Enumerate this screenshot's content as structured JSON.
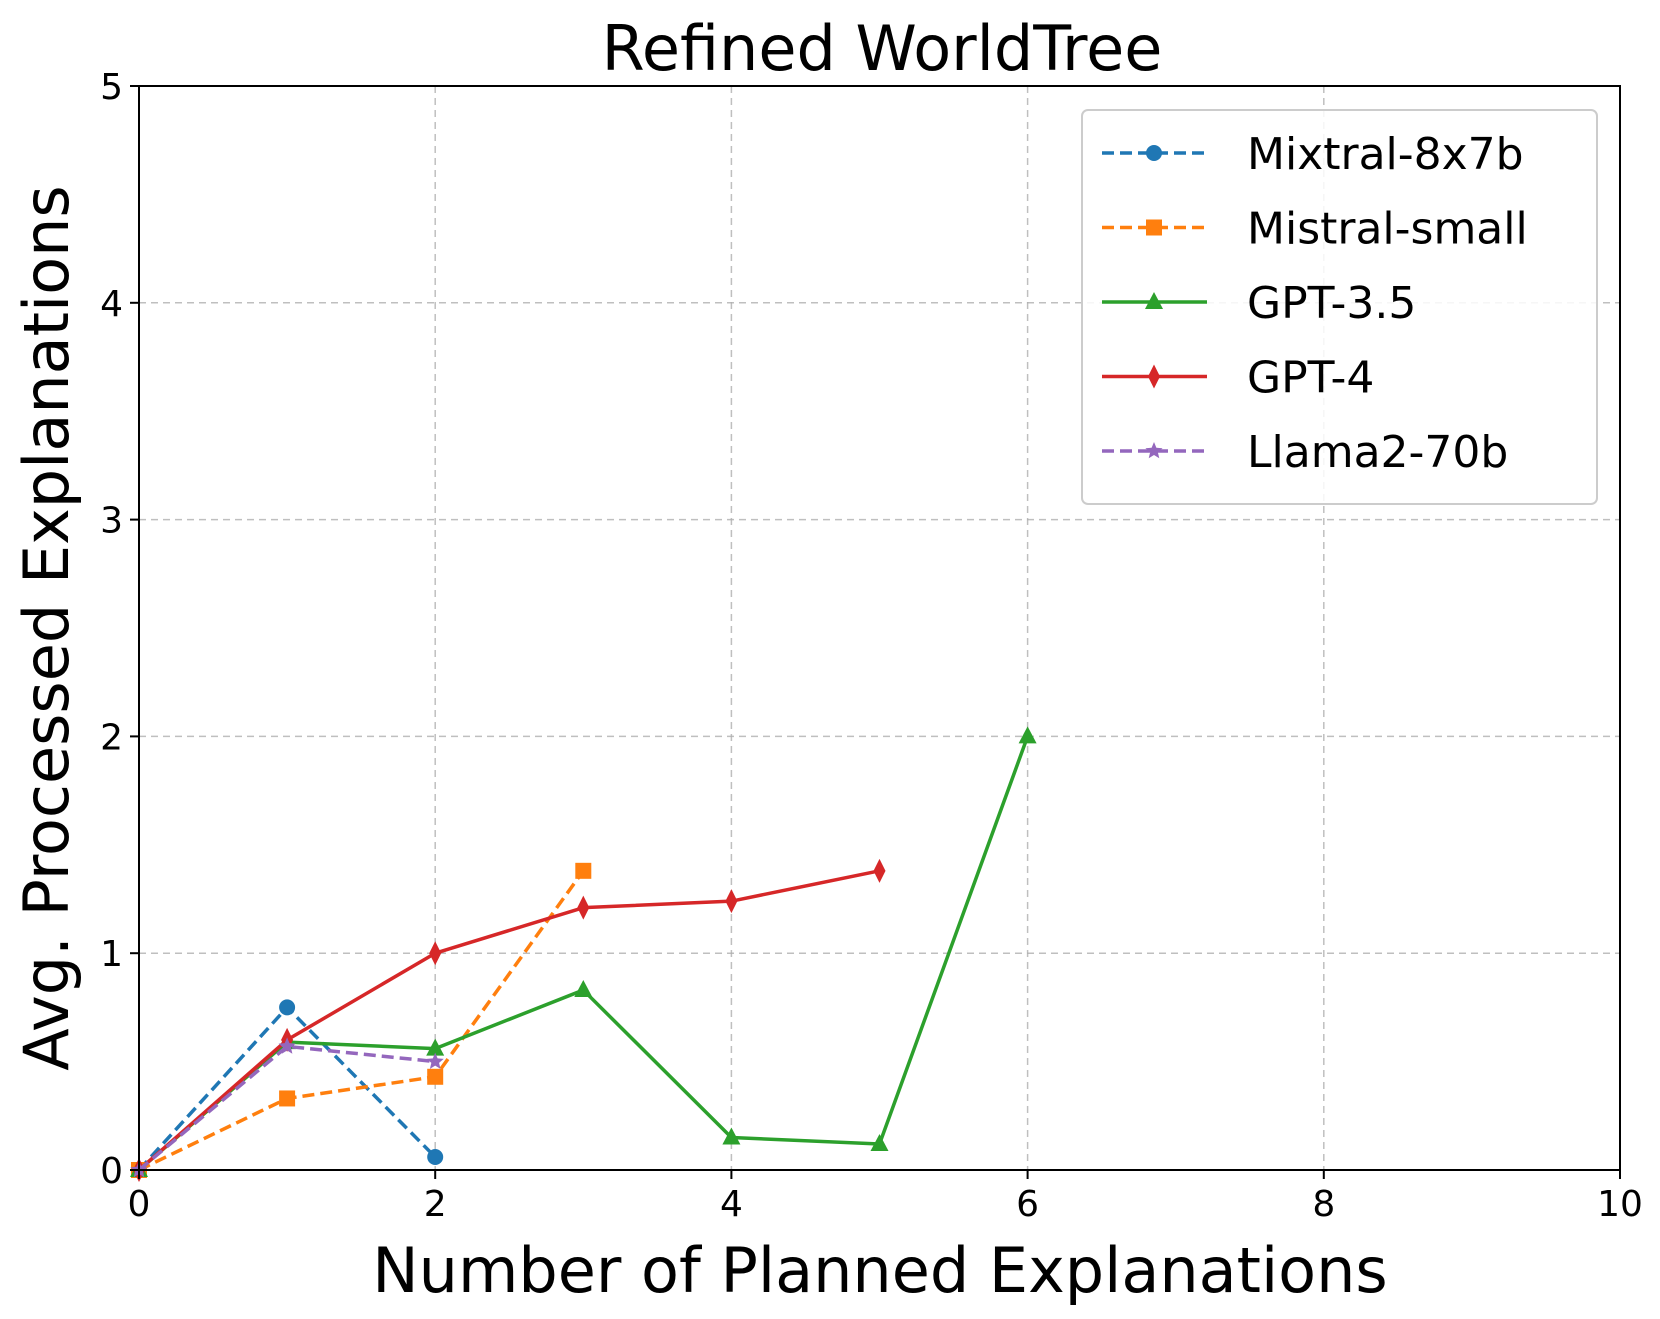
{
  "chart_data": {
    "type": "line",
    "title": "Refined WorldTree",
    "xlabel": "Number of Planned Explanations",
    "ylabel": "Avg. Processed Explanations",
    "xlim": [
      0,
      10
    ],
    "ylim": [
      0,
      5
    ],
    "xticks": [
      0,
      2,
      4,
      6,
      8,
      10
    ],
    "yticks": [
      0,
      1,
      2,
      3,
      4,
      5
    ],
    "xtick_labels": [
      "0",
      "2",
      "4",
      "6",
      "8",
      "10"
    ],
    "ytick_labels": [
      "0",
      "1",
      "2",
      "3",
      "4",
      "5"
    ],
    "grid": true,
    "legend_position": "top-right",
    "series": [
      {
        "name": "Mixtral-8x7b",
        "color": "#1f77b4",
        "dashed": true,
        "marker": "circle",
        "x": [
          0,
          1,
          2
        ],
        "y": [
          0,
          0.75,
          0.06
        ]
      },
      {
        "name": "Mistral-small",
        "color": "#ff7f0e",
        "dashed": true,
        "marker": "square",
        "x": [
          0,
          1,
          2,
          3
        ],
        "y": [
          0,
          0.33,
          0.43,
          1.38
        ]
      },
      {
        "name": "GPT-3.5",
        "color": "#2ca02c",
        "dashed": false,
        "marker": "triangle",
        "x": [
          0,
          1,
          2,
          3,
          4,
          5,
          6
        ],
        "y": [
          0,
          0.59,
          0.56,
          0.83,
          0.15,
          0.12,
          2.0
        ]
      },
      {
        "name": "GPT-4",
        "color": "#d62728",
        "dashed": false,
        "marker": "diamond",
        "x": [
          0,
          1,
          2,
          3,
          4,
          5
        ],
        "y": [
          0,
          0.6,
          1.0,
          1.21,
          1.24,
          1.38
        ]
      },
      {
        "name": "Llama2-70b",
        "color": "#9467bd",
        "dashed": true,
        "marker": "star",
        "x": [
          0,
          1,
          2
        ],
        "y": [
          0,
          0.57,
          0.5
        ]
      }
    ]
  }
}
